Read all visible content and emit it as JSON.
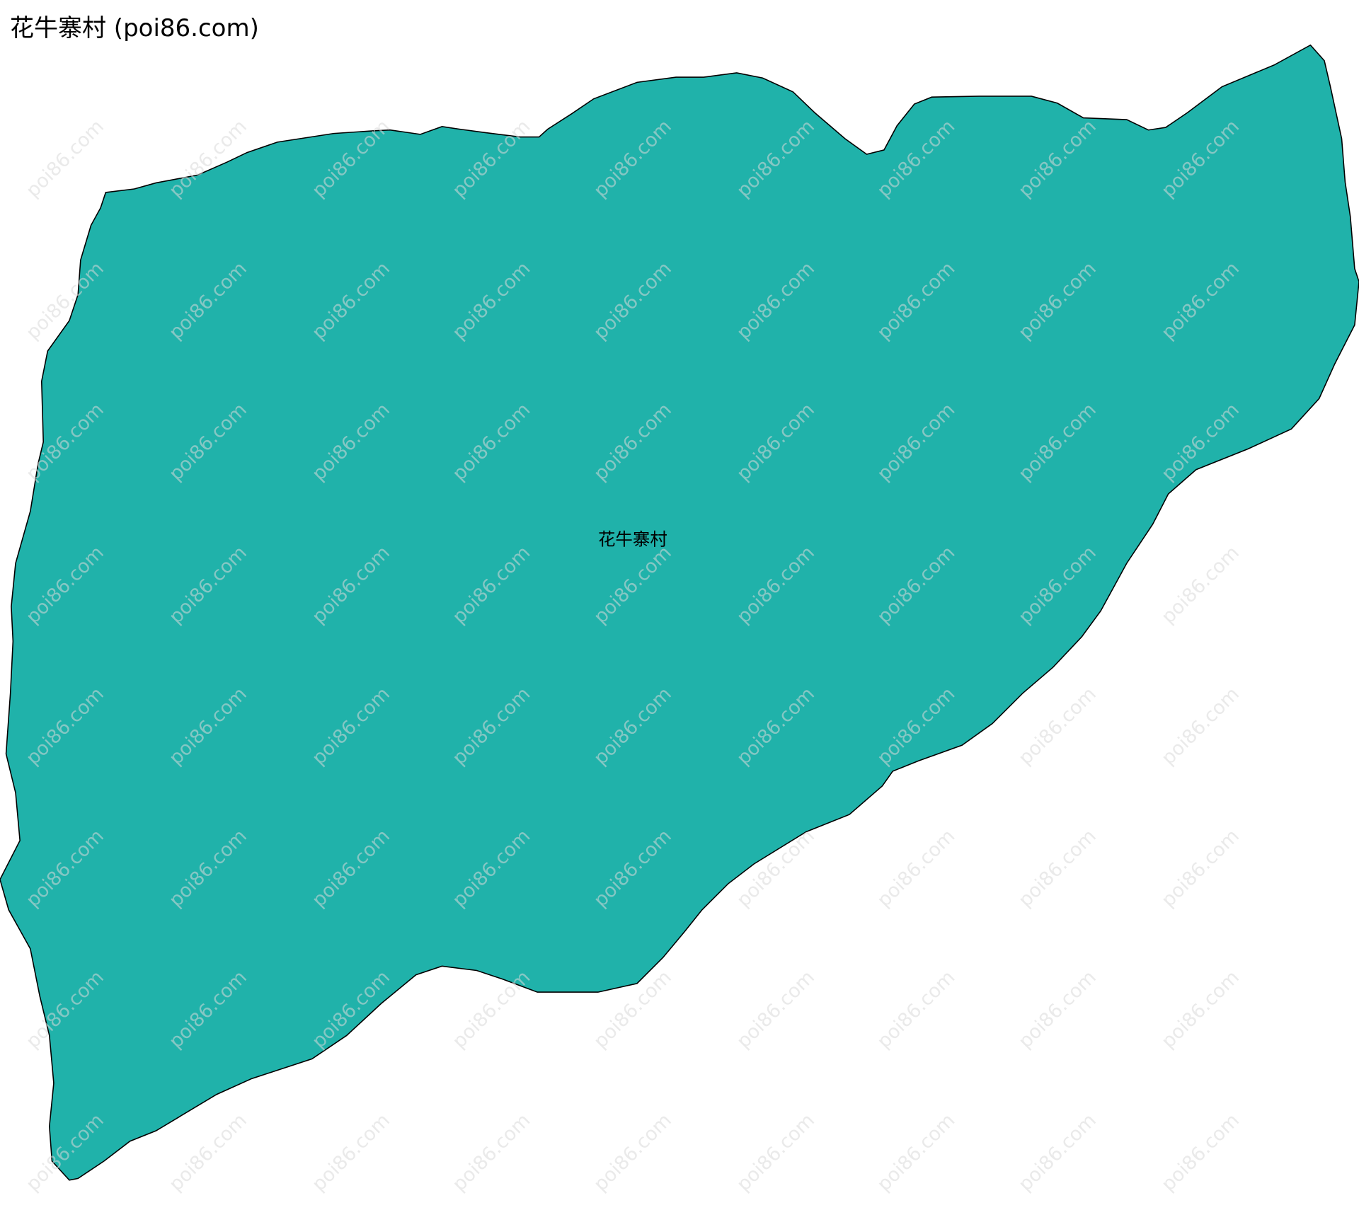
{
  "title": "花牛寨村 (poi86.com)",
  "map": {
    "region_name": "花牛寨村",
    "fill_color": "#20b2aa",
    "stroke_color": "#000000",
    "watermark_text": "poi86.com"
  }
}
